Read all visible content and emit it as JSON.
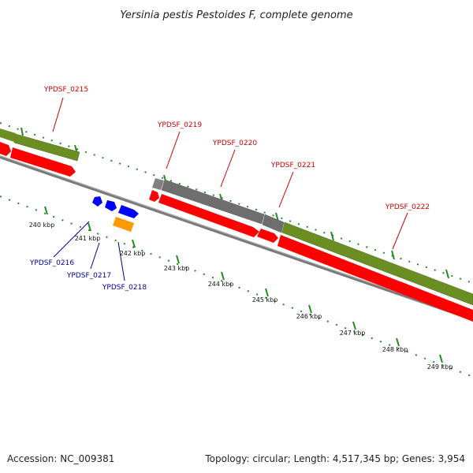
{
  "title": "Yersinia pestis Pestoides F, complete genome",
  "footer": {
    "accession": "Accession: NC_009381",
    "topology": "Topology: circular; Length: 4,517,345 bp; Genes: 3,954"
  },
  "colors": {
    "gene_olive": "#6b8e23",
    "cds_red": "#ff0000",
    "gene_gray": "#707070",
    "cds_blue": "#0000ff",
    "orange": "#ff9900",
    "tick_green": "#228b22",
    "backbone": "#808080",
    "label_red": "#cc0000",
    "label_blue": "#000099"
  },
  "scale": {
    "ticks": [
      {
        "label": "240 kbp",
        "value": 240
      },
      {
        "label": "241 kbp",
        "value": 241
      },
      {
        "label": "242 kbp",
        "value": 242
      },
      {
        "label": "243 kbp",
        "value": 243
      },
      {
        "label": "244 kbp",
        "value": 244
      },
      {
        "label": "245 kbp",
        "value": 245
      },
      {
        "label": "246 kbp",
        "value": 246
      },
      {
        "label": "247 kbp",
        "value": 247
      },
      {
        "label": "248 kbp",
        "value": 248
      },
      {
        "label": "249 kbp",
        "value": 249
      }
    ]
  },
  "gene_labels_upper": [
    "YPDSF_0215",
    "YPDSF_0219",
    "YPDSF_0220",
    "YPDSF_0221",
    "YPDSF_0222"
  ],
  "gene_labels_lower": [
    "YPDSF_0216",
    "YPDSF_0217",
    "YPDSF_0218"
  ]
}
